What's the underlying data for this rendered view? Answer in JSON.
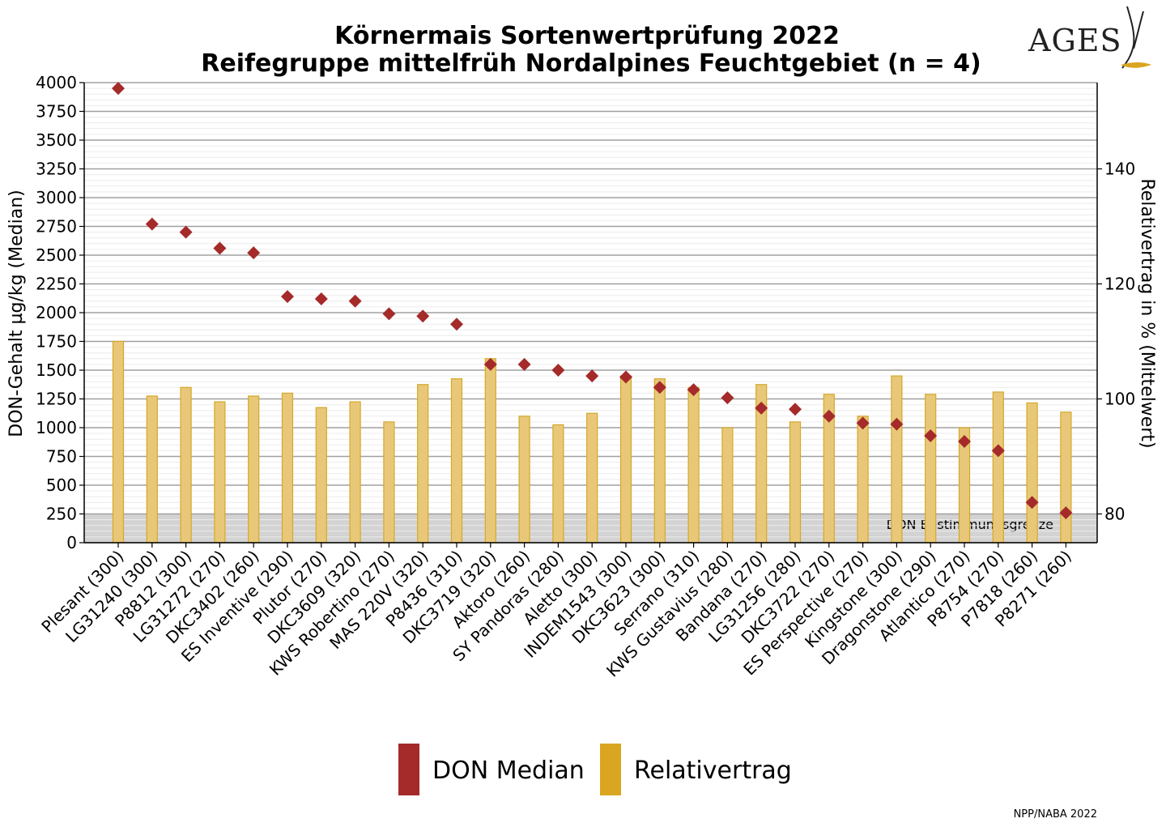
{
  "logo": {
    "text": "AGES"
  },
  "credit": "NPP/NABA 2022",
  "colors": {
    "don": "#a52a2a",
    "relativertrag_fill": "#e8c878",
    "relativertrag_stroke": "#d4a82a",
    "legend_relativertrag": "#daa520",
    "detection_band": "#d3d3d3",
    "grid": "#a0a0a0"
  },
  "chart_data": {
    "type": "bar",
    "title": [
      "Körnermais Sortenwertprüfung 2022",
      "Reifegruppe mittelfrüh Nordalpines Feuchtgebiet (n = 4)"
    ],
    "ylabel_left": "DON-Gehalt µg/kg (Median)",
    "ylabel_right": "Relativertrag in % (Mittelwert)",
    "ylim_left": [
      0,
      4000
    ],
    "yticks_left": [
      "0",
      "250",
      "500",
      "750",
      "1000",
      "1250",
      "1500",
      "1750",
      "2000",
      "2250",
      "2500",
      "2750",
      "3000",
      "3250",
      "3500",
      "3750",
      "4000"
    ],
    "ylim_right": [
      75,
      155
    ],
    "yticks_right": [
      "80",
      "100",
      "120",
      "140"
    ],
    "detection_limit": {
      "value": 250,
      "label": "DON Bestimmungsgrenze"
    },
    "grid": true,
    "legend_position": "bottom",
    "categories": [
      "Plesant (300)",
      "LG31240 (300)",
      "P8812 (300)",
      "LG31272 (270)",
      "DKC3402 (260)",
      "ES Inventive (290)",
      "Plutor (270)",
      "DKC3609 (320)",
      "KWS Robertino (270)",
      "MAS 220V (320)",
      "P8436 (310)",
      "DKC3719 (320)",
      "Aktoro (260)",
      "SY Pandoras (280)",
      "Aletto (300)",
      "INDEM1543 (300)",
      "DKC3623 (300)",
      "Serrano (310)",
      "KWS Gustavius (280)",
      "Bandana (270)",
      "LG31256 (280)",
      "DKC3722 (270)",
      "ES Perspective (270)",
      "Kingstone (300)",
      "Dragonstone (290)",
      "Atlantico (270)",
      "P8754 (270)",
      "P7818 (260)",
      "P8271 (260)"
    ],
    "series": [
      {
        "name": "DON Median",
        "kind": "scatter",
        "axis": "left",
        "values": [
          3950,
          2770,
          2700,
          2560,
          2520,
          2140,
          2120,
          2100,
          1990,
          1970,
          1900,
          1550,
          1550,
          1500,
          1450,
          1440,
          1350,
          1330,
          1260,
          1170,
          1160,
          1100,
          1040,
          1030,
          930,
          880,
          800,
          350,
          260
        ]
      },
      {
        "name": "Relativertrag",
        "kind": "bar",
        "axis": "right",
        "values": [
          110,
          100.5,
          102,
          99.5,
          100.5,
          101,
          98.5,
          99.5,
          96,
          102.5,
          103.5,
          107,
          97,
          95.5,
          97.5,
          104,
          103.5,
          102,
          95,
          102.5,
          96,
          100.8,
          97,
          104,
          100.8,
          95,
          101.2,
          99.3,
          97.7
        ]
      }
    ]
  }
}
